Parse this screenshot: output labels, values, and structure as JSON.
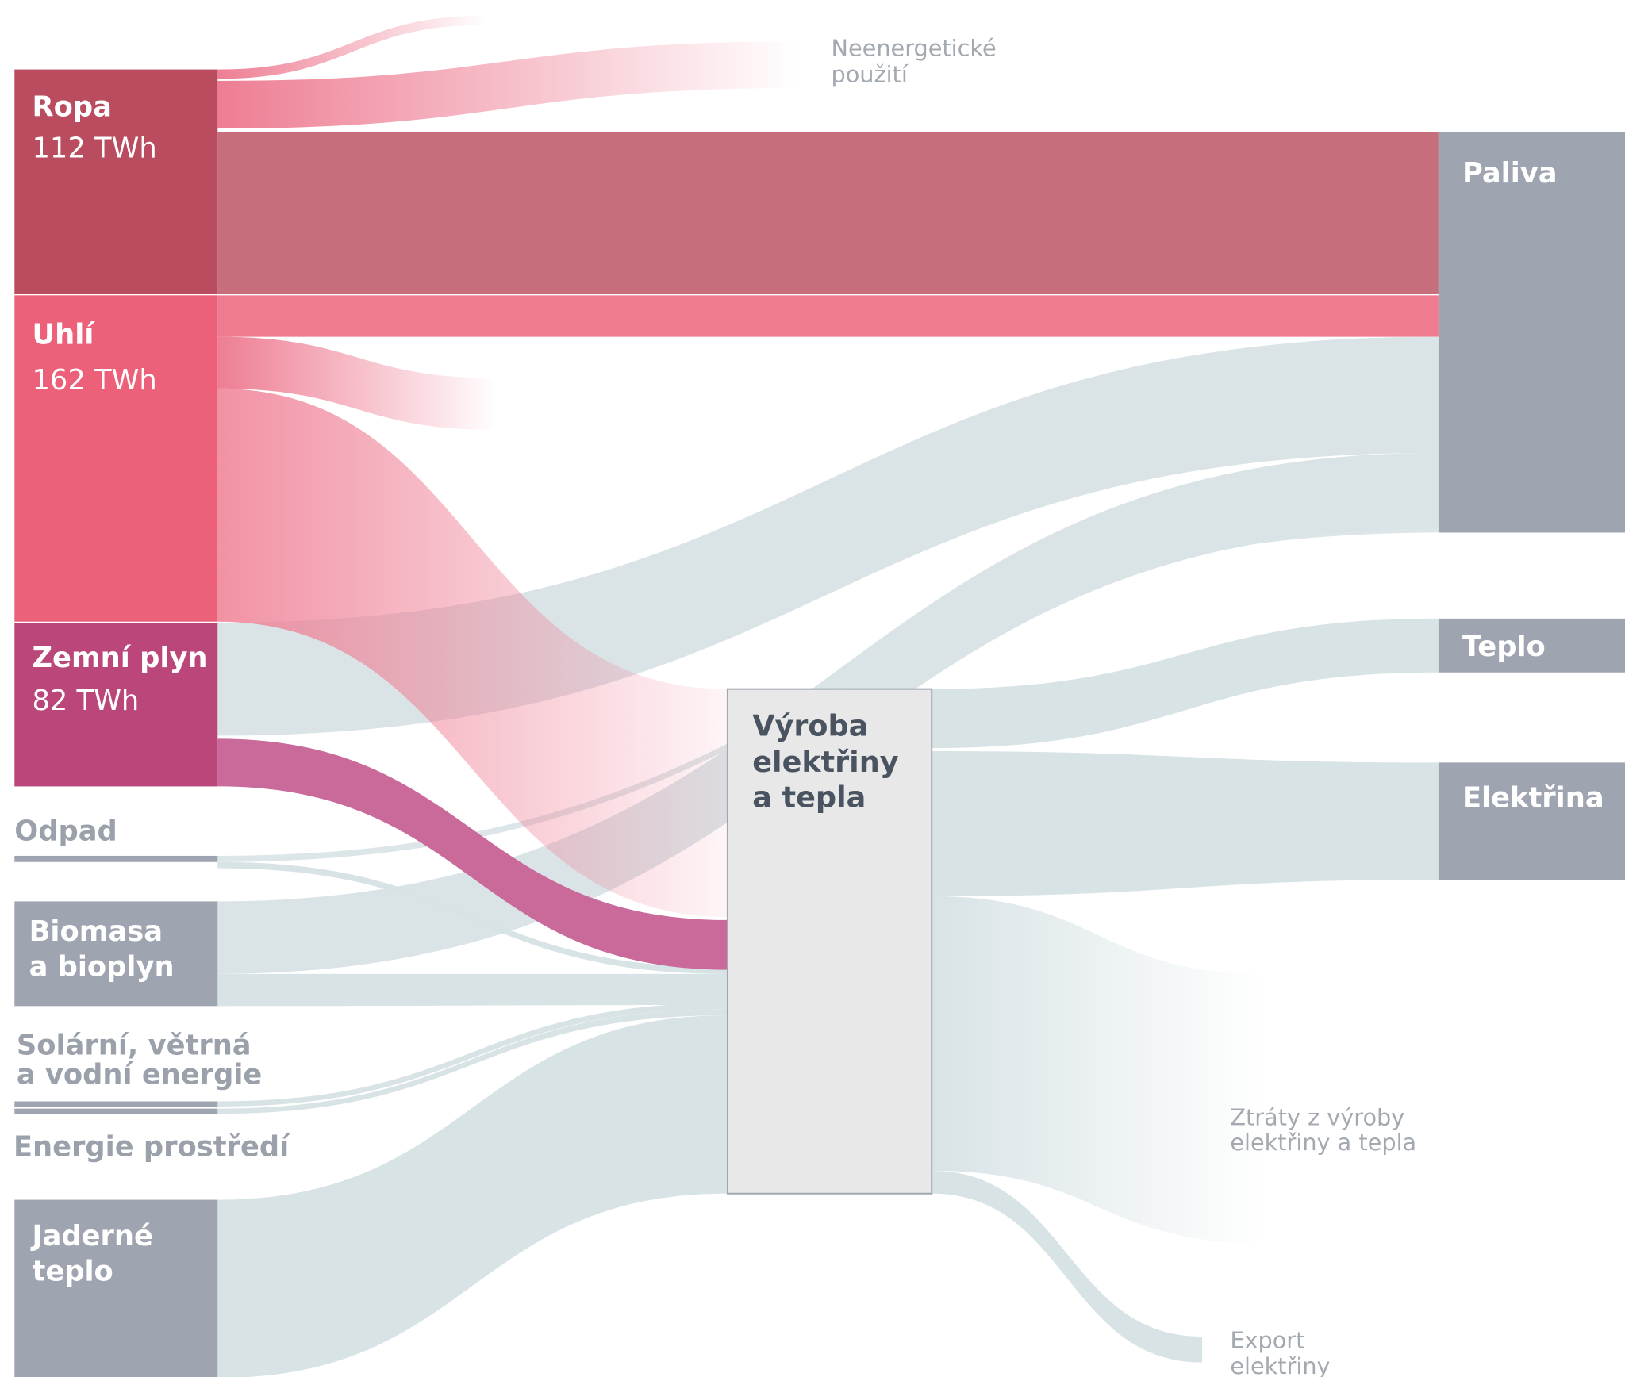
{
  "sources": [
    {
      "label": "Ropa",
      "value_text": "112 TWh"
    },
    {
      "label": "Uhlí",
      "value_text": "162 TWh"
    },
    {
      "label": "Zemní plyn",
      "value_text": "82 TWh"
    },
    {
      "label": "Odpad"
    },
    {
      "label": [
        "Biomasa",
        "a bioplyn"
      ]
    },
    {
      "label": [
        "Solární, větrná",
        "a vodní energie"
      ]
    },
    {
      "label": "Energie prostředí"
    },
    {
      "label": [
        "Jaderné",
        "teplo"
      ]
    }
  ],
  "hub": {
    "label": [
      "Výroba",
      "elektřiny",
      "a tepla"
    ]
  },
  "targets": [
    {
      "label": "Paliva"
    },
    {
      "label": "Teplo"
    },
    {
      "label": "Elektřina"
    }
  ],
  "outputs": [
    {
      "label": [
        "Neenergetické",
        "použití"
      ]
    },
    {
      "label": [
        "Ztráty z výroby",
        "elektřiny a tepla"
      ]
    },
    {
      "label": [
        "Export",
        "elektřiny"
      ]
    }
  ]
}
